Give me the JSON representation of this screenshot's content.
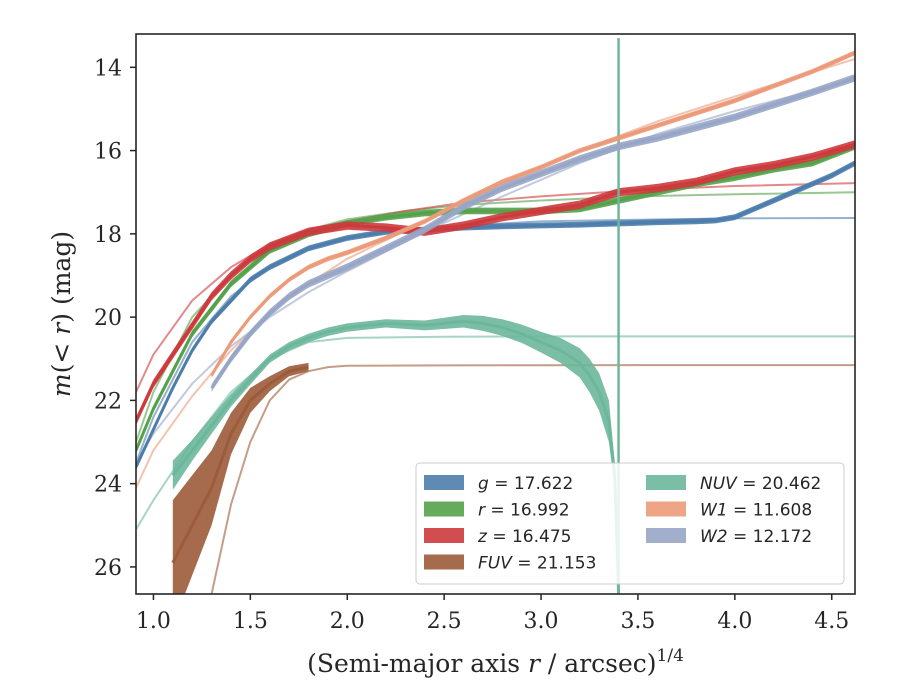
{
  "chart_data": {
    "type": "line",
    "xlabel": "(Semi-major axis r / arcsec)^1/4",
    "xlabel_parts": [
      "(Semi-major axis ",
      "r",
      " / arcsec)",
      "1/4"
    ],
    "ylabel": "m(< r) (mag)",
    "ylabel_parts": [
      "m",
      "(< ",
      "r",
      ") (mag)"
    ],
    "xlim": [
      0.91,
      4.62
    ],
    "ylim": [
      26.65,
      13.2
    ],
    "y_inverted": true,
    "xticks": [
      1.0,
      1.5,
      2.0,
      2.5,
      3.0,
      3.5,
      4.0,
      4.5
    ],
    "xtick_labels": [
      "1.0",
      "1.5",
      "2.0",
      "2.5",
      "3.0",
      "3.5",
      "4.0",
      "4.5"
    ],
    "yticks": [
      14,
      16,
      18,
      20,
      22,
      24,
      26
    ],
    "ytick_labels": [
      "14",
      "16",
      "18",
      "20",
      "22",
      "24",
      "26"
    ],
    "legend_position": "lower-right",
    "legend_columns": 2,
    "series": [
      {
        "name": "g = 17.622",
        "label_var": "g",
        "label_value": "17.622",
        "color": "#4c7dac",
        "x": [
          0.91,
          1.0,
          1.1,
          1.2,
          1.3,
          1.4,
          1.5,
          1.6,
          1.8,
          2.0,
          2.2,
          2.4,
          2.6,
          2.8,
          3.0,
          3.2,
          3.4,
          3.6,
          3.8,
          3.9,
          4.0,
          4.1,
          4.2,
          4.3,
          4.4,
          4.5,
          4.62
        ],
        "y": [
          23.6,
          22.7,
          21.7,
          20.8,
          20.1,
          19.6,
          19.1,
          18.8,
          18.35,
          18.1,
          17.95,
          17.9,
          17.85,
          17.82,
          17.8,
          17.78,
          17.75,
          17.72,
          17.7,
          17.68,
          17.6,
          17.4,
          17.2,
          17.0,
          16.8,
          16.6,
          16.3
        ],
        "band": 0.07,
        "model_x": [
          0.91,
          1.0,
          1.2,
          1.4,
          1.6,
          1.8,
          2.0,
          2.3,
          2.6,
          3.0,
          3.5,
          4.0,
          4.62
        ],
        "model_y": [
          23.5,
          22.4,
          20.6,
          19.5,
          18.8,
          18.35,
          18.1,
          17.9,
          17.8,
          17.7,
          17.66,
          17.63,
          17.62
        ]
      },
      {
        "name": "r = 16.992",
        "label_var": "r",
        "label_value": "16.992",
        "color": "#55a24a",
        "x": [
          0.91,
          1.0,
          1.1,
          1.2,
          1.3,
          1.4,
          1.5,
          1.6,
          1.8,
          2.0,
          2.2,
          2.4,
          2.6,
          2.8,
          3.0,
          3.2,
          3.4,
          3.6,
          3.8,
          4.0,
          4.2,
          4.4,
          4.62
        ],
        "y": [
          23.2,
          22.2,
          21.3,
          20.4,
          19.8,
          19.2,
          18.8,
          18.4,
          18.0,
          17.75,
          17.6,
          17.5,
          17.45,
          17.45,
          17.45,
          17.4,
          17.2,
          17.0,
          16.8,
          16.65,
          16.45,
          16.3,
          15.9
        ],
        "band": 0.08,
        "model_x": [
          0.91,
          1.0,
          1.2,
          1.4,
          1.6,
          1.8,
          2.0,
          2.3,
          2.6,
          3.0,
          3.5,
          4.0,
          4.62
        ],
        "model_y": [
          23.0,
          21.8,
          20.0,
          19.0,
          18.3,
          17.9,
          17.65,
          17.45,
          17.3,
          17.2,
          17.1,
          17.05,
          17.0
        ]
      },
      {
        "name": "z = 16.475",
        "label_var": "z",
        "label_value": "16.475",
        "color": "#cd3a3d",
        "x": [
          0.91,
          1.0,
          1.1,
          1.2,
          1.3,
          1.4,
          1.5,
          1.6,
          1.8,
          2.0,
          2.2,
          2.4,
          2.6,
          2.8,
          3.0,
          3.2,
          3.4,
          3.6,
          3.8,
          4.0,
          4.2,
          4.4,
          4.62
        ],
        "y": [
          22.5,
          21.6,
          20.9,
          20.2,
          19.5,
          19.0,
          18.6,
          18.3,
          17.95,
          17.8,
          17.85,
          17.95,
          17.8,
          17.6,
          17.45,
          17.3,
          17.0,
          16.9,
          16.75,
          16.5,
          16.35,
          16.15,
          15.85
        ],
        "band": 0.1,
        "model_x": [
          0.91,
          1.0,
          1.2,
          1.4,
          1.6,
          1.8,
          2.0,
          2.3,
          2.6,
          3.0,
          3.5,
          4.0,
          4.62
        ],
        "model_y": [
          21.8,
          20.9,
          19.6,
          18.8,
          18.25,
          17.9,
          17.7,
          17.45,
          17.25,
          17.1,
          16.95,
          16.85,
          16.78
        ]
      },
      {
        "name": "FUV = 21.153",
        "label_var": "FUV",
        "label_value": "21.153",
        "color": "#9c5b3a",
        "x": [
          1.1,
          1.2,
          1.3,
          1.4,
          1.5,
          1.6,
          1.7,
          1.8
        ],
        "y": [
          25.9,
          25.0,
          24.1,
          22.8,
          22.0,
          21.6,
          21.3,
          21.2
        ],
        "band_list": [
          1.5,
          1.2,
          0.9,
          0.5,
          0.3,
          0.18,
          0.12,
          0.1
        ],
        "model_x": [
          1.3,
          1.4,
          1.5,
          1.6,
          1.7,
          1.8,
          1.9,
          2.0,
          2.5,
          3.0,
          3.5,
          4.0,
          4.62
        ],
        "model_y": [
          26.65,
          24.5,
          23.0,
          22.0,
          21.5,
          21.3,
          21.2,
          21.17,
          21.16,
          21.155,
          21.153,
          21.153,
          21.153
        ]
      },
      {
        "name": "NUV = 20.462",
        "label_var": "NUV",
        "label_value": "20.462",
        "color": "#6cb79c",
        "x": [
          1.1,
          1.2,
          1.3,
          1.4,
          1.5,
          1.6,
          1.7,
          1.8,
          1.9,
          2.0,
          2.2,
          2.4,
          2.6,
          2.7,
          2.8,
          2.9,
          3.0,
          3.1,
          3.2,
          3.25,
          3.3,
          3.35,
          3.38,
          3.4
        ],
        "y": [
          23.8,
          23.2,
          22.6,
          22.0,
          21.5,
          21.0,
          20.7,
          20.5,
          20.35,
          20.25,
          20.15,
          20.2,
          20.1,
          20.15,
          20.25,
          20.4,
          20.6,
          20.8,
          21.1,
          21.4,
          21.8,
          22.5,
          23.8,
          26.65
        ],
        "band_list": [
          0.35,
          0.25,
          0.2,
          0.15,
          0.12,
          0.1,
          0.1,
          0.1,
          0.1,
          0.1,
          0.1,
          0.12,
          0.15,
          0.18,
          0.2,
          0.22,
          0.25,
          0.3,
          0.35,
          0.4,
          0.45,
          0.5,
          0.3,
          0.0
        ],
        "spike_x": 3.4,
        "spike_y": [
          26.65,
          13.3
        ],
        "model_x": [
          0.91,
          1.0,
          1.2,
          1.4,
          1.6,
          1.8,
          2.0,
          2.5,
          3.0,
          3.5,
          4.0,
          4.62
        ],
        "model_y": [
          25.1,
          24.4,
          23.0,
          21.8,
          21.0,
          20.6,
          20.5,
          20.47,
          20.463,
          20.462,
          20.462,
          20.462
        ]
      },
      {
        "name": "W1 = 11.608",
        "label_var": "W1",
        "label_value": "11.608",
        "color": "#ec9b7a",
        "x": [
          1.3,
          1.4,
          1.5,
          1.6,
          1.7,
          1.8,
          1.9,
          2.0,
          2.2,
          2.4,
          2.6,
          2.8,
          3.0,
          3.2,
          3.4,
          3.6,
          3.8,
          4.0,
          4.2,
          4.4,
          4.62
        ],
        "y": [
          21.4,
          20.6,
          20.0,
          19.5,
          19.1,
          18.8,
          18.6,
          18.45,
          18.1,
          17.7,
          17.2,
          16.75,
          16.4,
          16.0,
          15.7,
          15.4,
          15.1,
          14.8,
          14.45,
          14.1,
          13.65
        ],
        "band": 0.06,
        "model_x": [
          0.91,
          1.0,
          1.2,
          1.4,
          1.6,
          1.8,
          2.0,
          2.4,
          2.8,
          3.2,
          3.6,
          4.0,
          4.62
        ],
        "model_y": [
          24.1,
          23.2,
          21.9,
          20.8,
          19.9,
          19.2,
          18.6,
          17.7,
          16.8,
          16.0,
          15.3,
          14.7,
          13.8
        ]
      },
      {
        "name": "W2 = 12.172",
        "label_var": "W2",
        "label_value": "12.172",
        "color": "#97a6c7",
        "x": [
          1.3,
          1.4,
          1.5,
          1.6,
          1.7,
          1.8,
          1.9,
          2.0,
          2.2,
          2.4,
          2.6,
          2.8,
          3.0,
          3.2,
          3.4,
          3.6,
          3.8,
          4.0,
          4.2,
          4.4,
          4.62
        ],
        "y": [
          21.7,
          21.0,
          20.4,
          19.9,
          19.5,
          19.2,
          19.0,
          18.8,
          18.35,
          17.9,
          17.35,
          16.9,
          16.55,
          16.2,
          15.9,
          15.7,
          15.45,
          15.2,
          14.9,
          14.6,
          14.25
        ],
        "band": 0.09,
        "model_x": [
          0.91,
          1.0,
          1.2,
          1.4,
          1.6,
          1.8,
          2.0,
          2.4,
          2.8,
          3.2,
          3.6,
          4.0,
          4.62
        ],
        "model_y": [
          23.5,
          22.8,
          21.6,
          20.7,
          20.0,
          19.4,
          18.9,
          17.95,
          17.1,
          16.3,
          15.6,
          15.05,
          14.3
        ]
      }
    ]
  }
}
